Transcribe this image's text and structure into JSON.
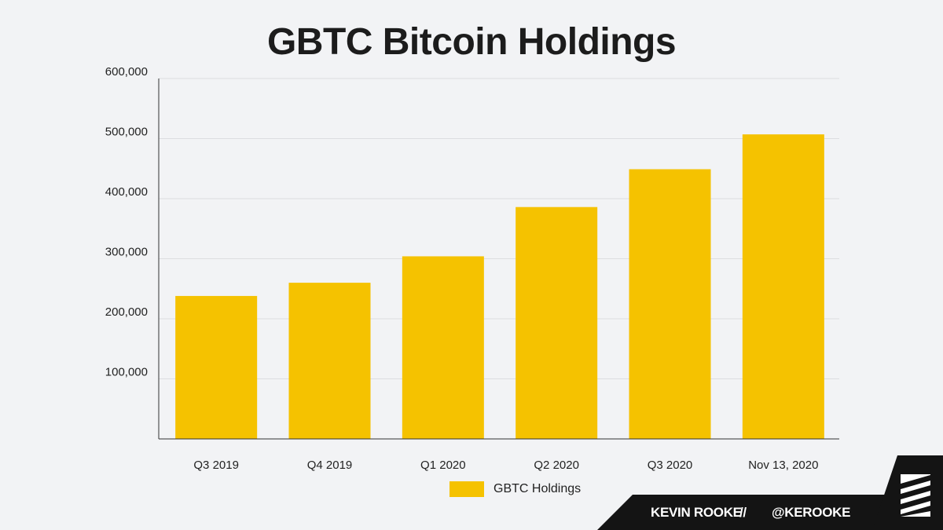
{
  "chart_data": {
    "type": "bar",
    "title": "GBTC Bitcoin Holdings",
    "categories": [
      "Q3 2019",
      "Q4 2019",
      "Q1 2020",
      "Q2 2020",
      "Q3 2020",
      "Nov 13, 2020"
    ],
    "series": [
      {
        "name": "GBTC Holdings",
        "values": [
          238000,
          260000,
          304000,
          386000,
          449000,
          507000
        ]
      }
    ],
    "xlabel": "",
    "ylabel": "",
    "ylim": [
      0,
      600000
    ],
    "yticks": [
      "100,000",
      "200,000",
      "300,000",
      "400,000",
      "500,000",
      "600,000"
    ],
    "ytick_values": [
      100000,
      200000,
      300000,
      400000,
      500000,
      600000
    ],
    "grid": true,
    "legend": "bottom-center",
    "bar_color": "#f5c200"
  },
  "branding": {
    "name": "KEVIN ROOKE",
    "separator": "//",
    "handle": "@KEROOKE"
  }
}
